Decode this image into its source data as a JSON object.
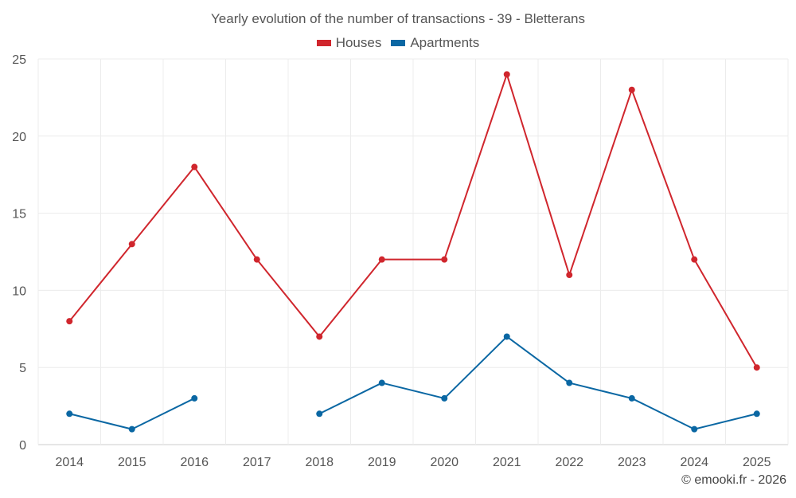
{
  "chart_data": {
    "type": "line",
    "title": "Yearly evolution of the number of transactions - 39 - Bletterans",
    "categories": [
      "2014",
      "2015",
      "2016",
      "2017",
      "2018",
      "2019",
      "2020",
      "2021",
      "2022",
      "2023",
      "2024",
      "2025"
    ],
    "series": [
      {
        "name": "Houses",
        "color": "#d0262d",
        "values": [
          8,
          13,
          18,
          12,
          7,
          12,
          12,
          24,
          11,
          23,
          12,
          5
        ]
      },
      {
        "name": "Apartments",
        "color": "#0a67a3",
        "values": [
          2,
          1,
          3,
          null,
          2,
          4,
          3,
          7,
          4,
          3,
          1,
          2
        ]
      }
    ],
    "yticks": [
      0,
      5,
      10,
      15,
      20,
      25
    ],
    "ylim": [
      0,
      25
    ],
    "xlabel": "",
    "ylabel": "",
    "grid": true,
    "legend": "top-center"
  },
  "credit": "© emooki.fr - 2026"
}
